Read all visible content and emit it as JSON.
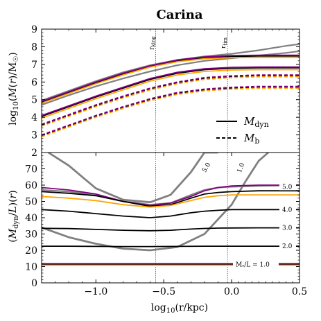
{
  "chart_data": [
    {
      "type": "line",
      "panel": "top",
      "title": "Carina",
      "xlabel": "",
      "ylabel": "log₁₀(M(r)/M☉)",
      "xlim": [
        -1.4,
        0.5
      ],
      "ylim": [
        2,
        9
      ],
      "yticks": [
        "2",
        "3",
        "4",
        "5",
        "6",
        "7",
        "8",
        "9"
      ],
      "vlines": [
        {
          "name": "r_king",
          "label": "r",
          "sub": "king",
          "x": -0.56
        },
        {
          "name": "r_tim",
          "label": "r",
          "sub": "tim",
          "x": -0.03
        }
      ],
      "legend": {
        "placement": "lower-right",
        "entries": [
          {
            "label": "M",
            "sub": "dyn",
            "style": "solid"
          },
          {
            "label": "M",
            "sub": "b",
            "style": "dashed"
          }
        ]
      },
      "series": [
        {
          "color": "#808080",
          "style": "solid",
          "x": [
            -1.4,
            -1.2,
            -1.0,
            -0.8,
            -0.6,
            -0.4,
            -0.2,
            0.0,
            0.2,
            0.4,
            0.5
          ],
          "y": [
            4.95,
            5.5,
            6.05,
            6.55,
            6.95,
            7.25,
            7.45,
            7.6,
            7.8,
            8.05,
            8.15
          ]
        },
        {
          "color": "#808080",
          "style": "solid",
          "x": [
            -1.4,
            -1.2,
            -1.0,
            -0.8,
            -0.6,
            -0.4,
            -0.2,
            0.0,
            0.2,
            0.4,
            0.5
          ],
          "y": [
            4.7,
            5.25,
            5.75,
            6.2,
            6.6,
            6.95,
            7.2,
            7.35,
            7.5,
            7.65,
            7.75
          ]
        },
        {
          "color": "#000000",
          "style": "solid",
          "x": [
            -1.4,
            -1.2,
            -1.0,
            -0.8,
            -0.6,
            -0.4,
            -0.2,
            0.0,
            0.2,
            0.4,
            0.5
          ],
          "y": [
            4.85,
            5.4,
            5.95,
            6.45,
            6.9,
            7.2,
            7.38,
            7.45,
            7.47,
            7.47,
            7.47
          ]
        },
        {
          "color": "#ffa500",
          "style": "solid",
          "x": [
            -1.4,
            -1.2,
            -1.0,
            -0.8,
            -0.6,
            -0.4,
            -0.2,
            0.0,
            0.2,
            0.4,
            0.5
          ],
          "y": [
            4.8,
            5.35,
            5.9,
            6.4,
            6.85,
            7.15,
            7.32,
            7.38,
            7.4,
            7.4,
            7.4
          ]
        },
        {
          "color": "#800080",
          "style": "solid",
          "x": [
            -1.4,
            -1.2,
            -1.0,
            -0.8,
            -0.6,
            -0.4,
            -0.2,
            0.0,
            0.2,
            0.4,
            0.5
          ],
          "y": [
            4.9,
            5.45,
            6.0,
            6.5,
            6.92,
            7.25,
            7.42,
            7.5,
            7.52,
            7.52,
            7.52
          ]
        },
        {
          "color": "#000000",
          "style": "solid",
          "x": [
            -1.4,
            -1.2,
            -1.0,
            -0.8,
            -0.6,
            -0.4,
            -0.2,
            0.0,
            0.2,
            0.4,
            0.5
          ],
          "y": [
            4.05,
            4.6,
            5.15,
            5.65,
            6.15,
            6.5,
            6.7,
            6.78,
            6.8,
            6.8,
            6.8
          ]
        },
        {
          "color": "#ffa500",
          "style": "solid",
          "x": [
            -1.4,
            -1.2,
            -1.0,
            -0.8,
            -0.6,
            -0.4,
            -0.2,
            0.0,
            0.2,
            0.4,
            0.5
          ],
          "y": [
            3.95,
            4.5,
            5.05,
            5.55,
            6.05,
            6.4,
            6.6,
            6.68,
            6.7,
            6.7,
            6.7
          ]
        },
        {
          "color": "#800080",
          "style": "solid",
          "x": [
            -1.4,
            -1.2,
            -1.0,
            -0.8,
            -0.6,
            -0.4,
            -0.2,
            0.0,
            0.2,
            0.4,
            0.5
          ],
          "y": [
            4.1,
            4.65,
            5.2,
            5.7,
            6.2,
            6.55,
            6.75,
            6.83,
            6.85,
            6.85,
            6.85
          ]
        },
        {
          "color": "#000000",
          "style": "dashed",
          "x": [
            -1.4,
            -1.2,
            -1.0,
            -0.8,
            -0.6,
            -0.4,
            -0.2,
            0.0,
            0.2,
            0.4,
            0.5
          ],
          "y": [
            3.55,
            4.1,
            4.65,
            5.15,
            5.6,
            5.95,
            6.2,
            6.3,
            6.35,
            6.35,
            6.35
          ]
        },
        {
          "color": "#ffa500",
          "style": "dashed",
          "x": [
            -1.4,
            -1.2,
            -1.0,
            -0.8,
            -0.6,
            -0.4,
            -0.2,
            0.0,
            0.2,
            0.4,
            0.5
          ],
          "y": [
            3.5,
            4.05,
            4.6,
            5.1,
            5.55,
            5.9,
            6.15,
            6.25,
            6.3,
            6.3,
            6.3
          ]
        },
        {
          "color": "#800080",
          "style": "dashed",
          "x": [
            -1.4,
            -1.2,
            -1.0,
            -0.8,
            -0.6,
            -0.4,
            -0.2,
            0.0,
            0.2,
            0.4,
            0.5
          ],
          "y": [
            3.6,
            4.15,
            4.7,
            5.2,
            5.65,
            6.0,
            6.25,
            6.35,
            6.4,
            6.4,
            6.4
          ]
        },
        {
          "color": "#000000",
          "style": "dashed",
          "x": [
            -1.4,
            -1.2,
            -1.0,
            -0.8,
            -0.6,
            -0.4,
            -0.2,
            0.0,
            0.2,
            0.4,
            0.5
          ],
          "y": [
            2.95,
            3.5,
            4.05,
            4.55,
            5.0,
            5.35,
            5.55,
            5.65,
            5.7,
            5.7,
            5.7
          ]
        },
        {
          "color": "#ffa500",
          "style": "dashed",
          "x": [
            -1.4,
            -1.2,
            -1.0,
            -0.8,
            -0.6,
            -0.4,
            -0.2,
            0.0,
            0.2,
            0.4,
            0.5
          ],
          "y": [
            2.9,
            3.45,
            4.0,
            4.5,
            4.95,
            5.3,
            5.5,
            5.6,
            5.65,
            5.65,
            5.65
          ]
        },
        {
          "color": "#800080",
          "style": "dashed",
          "x": [
            -1.4,
            -1.2,
            -1.0,
            -0.8,
            -0.6,
            -0.4,
            -0.2,
            0.0,
            0.2,
            0.4,
            0.5
          ],
          "y": [
            3.0,
            3.55,
            4.1,
            4.6,
            5.05,
            5.4,
            5.6,
            5.7,
            5.75,
            5.75,
            5.75
          ]
        }
      ]
    },
    {
      "type": "line",
      "panel": "bottom",
      "xlabel": "log₁₀(r/kpc)",
      "ylabel": "(M_dyn/L)(r)",
      "xlim": [
        -1.4,
        0.5
      ],
      "ylim": [
        0,
        80
      ],
      "xticks": [
        "−1.0",
        "−0.5",
        "0.0",
        "0.5"
      ],
      "xtick_values": [
        -1.0,
        -0.5,
        0.0,
        0.5
      ],
      "yticks": [
        "0",
        "10",
        "20",
        "30",
        "40",
        "50",
        "60",
        "70"
      ],
      "vlines": [
        -0.56,
        -0.03
      ],
      "contours": [
        {
          "label": "5.0",
          "label_x": -0.2,
          "label_y": 40,
          "color": "#808080",
          "x": [
            -1.35,
            -1.2,
            -1.0,
            -0.8,
            -0.6,
            -0.45,
            -0.3,
            -0.2,
            -0.1
          ],
          "y": [
            80,
            72,
            58,
            51,
            49.5,
            54,
            68,
            80,
            80
          ]
        },
        {
          "label": "1.0",
          "label_x": 0.2,
          "label_y": 40,
          "color": "#808080",
          "x": [
            -1.4,
            -1.2,
            -1.0,
            -0.8,
            -0.6,
            -0.4,
            -0.2,
            0.0,
            0.1,
            0.2,
            0.27
          ],
          "y": [
            34,
            28,
            24,
            21,
            20,
            22,
            30,
            48,
            62,
            75,
            80
          ]
        }
      ],
      "series": [
        {
          "label": "5.0",
          "color": "#808080",
          "x": [
            -1.4,
            -1.2,
            -1.0,
            -0.8,
            -0.6,
            -0.45,
            -0.3,
            -0.2,
            -0.1,
            0.0,
            0.2,
            0.4,
            0.5
          ],
          "y": [
            57,
            56,
            54,
            50,
            48,
            49,
            54,
            57,
            58.5,
            59,
            59.5,
            59.8,
            60
          ]
        },
        {
          "label": "",
          "color": "#800080",
          "x": [
            -1.4,
            -1.2,
            -1.0,
            -0.8,
            -0.6,
            -0.45,
            -0.3,
            -0.2,
            -0.1,
            0.0,
            0.2,
            0.4,
            0.5
          ],
          "y": [
            58.5,
            57,
            54.5,
            50,
            47.5,
            49,
            53,
            56.5,
            58.5,
            59.5,
            60,
            60,
            60
          ]
        },
        {
          "label": "",
          "color": "#000000",
          "x": [
            -1.4,
            -1.2,
            -1.0,
            -0.8,
            -0.6,
            -0.45,
            -0.3,
            -0.2,
            -0.1,
            0.0,
            0.2,
            0.4,
            0.5
          ],
          "y": [
            56,
            55,
            53.5,
            50,
            47,
            48,
            52,
            54.5,
            55.5,
            56,
            56.5,
            56.5,
            56.5
          ]
        },
        {
          "label": "",
          "color": "#ffa500",
          "x": [
            -1.4,
            -1.2,
            -1.0,
            -0.8,
            -0.6,
            -0.45,
            -0.3,
            -0.2,
            -0.1,
            0.0,
            0.2,
            0.4,
            0.5
          ],
          "y": [
            53,
            52,
            50.5,
            48,
            46.5,
            47.5,
            50.5,
            52.5,
            53.5,
            54,
            54,
            54,
            54
          ]
        },
        {
          "label": "4.0",
          "color": "#000000",
          "x": [
            -1.4,
            -1.2,
            -1.0,
            -0.8,
            -0.6,
            -0.45,
            -0.3,
            -0.2,
            -0.1,
            0.0,
            0.2,
            0.4,
            0.5
          ],
          "y": [
            45,
            44,
            42.5,
            41,
            40,
            41,
            43,
            44,
            44.5,
            45,
            45,
            45,
            45
          ]
        },
        {
          "label": "3.0",
          "color": "#000000",
          "x": [
            -1.4,
            -1.2,
            -1.0,
            -0.8,
            -0.6,
            -0.45,
            -0.3,
            -0.2,
            -0.1,
            0.0,
            0.2,
            0.4,
            0.5
          ],
          "y": [
            33.5,
            33.3,
            32.8,
            32.3,
            32,
            32.3,
            33,
            33.4,
            33.6,
            33.7,
            33.8,
            33.8,
            33.8
          ]
        },
        {
          "label": "2.0",
          "color": "#000000",
          "x": [
            -1.4,
            -1.2,
            -1.0,
            -0.8,
            -0.6,
            -0.4,
            -0.2,
            0.0,
            0.2,
            0.4,
            0.5
          ],
          "y": [
            22.5,
            22.5,
            22.4,
            22.3,
            22.3,
            22.4,
            22.5,
            22.5,
            22.5,
            22.5,
            22.5
          ]
        },
        {
          "label": "Mₛ/L = 1.0",
          "color": "#000000",
          "x": [
            -1.4,
            -1.0,
            -0.5,
            0.0,
            0.5
          ],
          "y": [
            11.3,
            11.3,
            11.3,
            11.3,
            11.3
          ]
        },
        {
          "label": "",
          "color": "#ffa500",
          "x": [
            -1.4,
            -1.0,
            -0.5,
            0.0,
            0.5
          ],
          "y": [
            10.8,
            10.8,
            10.8,
            10.8,
            10.8
          ]
        },
        {
          "label": "",
          "color": "#800080",
          "x": [
            -1.4,
            -1.0,
            -0.5,
            0.0,
            0.5
          ],
          "y": [
            11.8,
            11.8,
            11.8,
            11.8,
            11.8
          ]
        }
      ]
    }
  ]
}
